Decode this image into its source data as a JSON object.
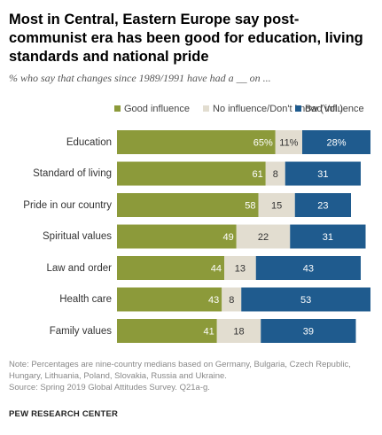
{
  "title": "Most in Central, Eastern Europe say post-communist era has been good for education, living standards and national pride",
  "subtitle": "% who say that changes since 1989/1991 have had a __ on ...",
  "legend": [
    {
      "label": "Good influence",
      "color": "#8c9a3a"
    },
    {
      "label": "No influence/Don't know (Vol.)",
      "color": "#e2ddd0"
    },
    {
      "label": "Bad influence",
      "color": "#1f5b8e"
    }
  ],
  "chart_data": {
    "type": "bar",
    "orientation": "horizontal",
    "stacked": true,
    "categories": [
      "Education",
      "Standard of living",
      "Pride in our country",
      "Spiritual values",
      "Law and order",
      "Health care",
      "Family values"
    ],
    "series": [
      {
        "name": "Good influence",
        "values": [
          65,
          61,
          58,
          49,
          44,
          43,
          41
        ]
      },
      {
        "name": "No influence/Don't know (Vol.)",
        "values": [
          11,
          8,
          15,
          22,
          13,
          8,
          18
        ]
      },
      {
        "name": "Bad influence",
        "values": [
          28,
          31,
          23,
          31,
          43,
          53,
          39
        ]
      }
    ],
    "value_labels": [
      [
        "65%",
        "11%",
        "28%"
      ],
      [
        "61",
        "8",
        "31"
      ],
      [
        "58",
        "15",
        "23"
      ],
      [
        "49",
        "22",
        "31"
      ],
      [
        "44",
        "13",
        "43"
      ],
      [
        "43",
        "8",
        "53"
      ],
      [
        "41",
        "18",
        "39"
      ]
    ],
    "legend_position": "top",
    "grid": false
  },
  "note": "Note: Percentages are nine-country medians based on Germany, Bulgaria, Czech Republic, Hungary, Lithuania, Poland, Slovakia, Russia and Ukraine.",
  "source": "Source: Spring 2019 Global Attitudes Survey. Q21a-g.",
  "brand": "PEW RESEARCH CENTER"
}
